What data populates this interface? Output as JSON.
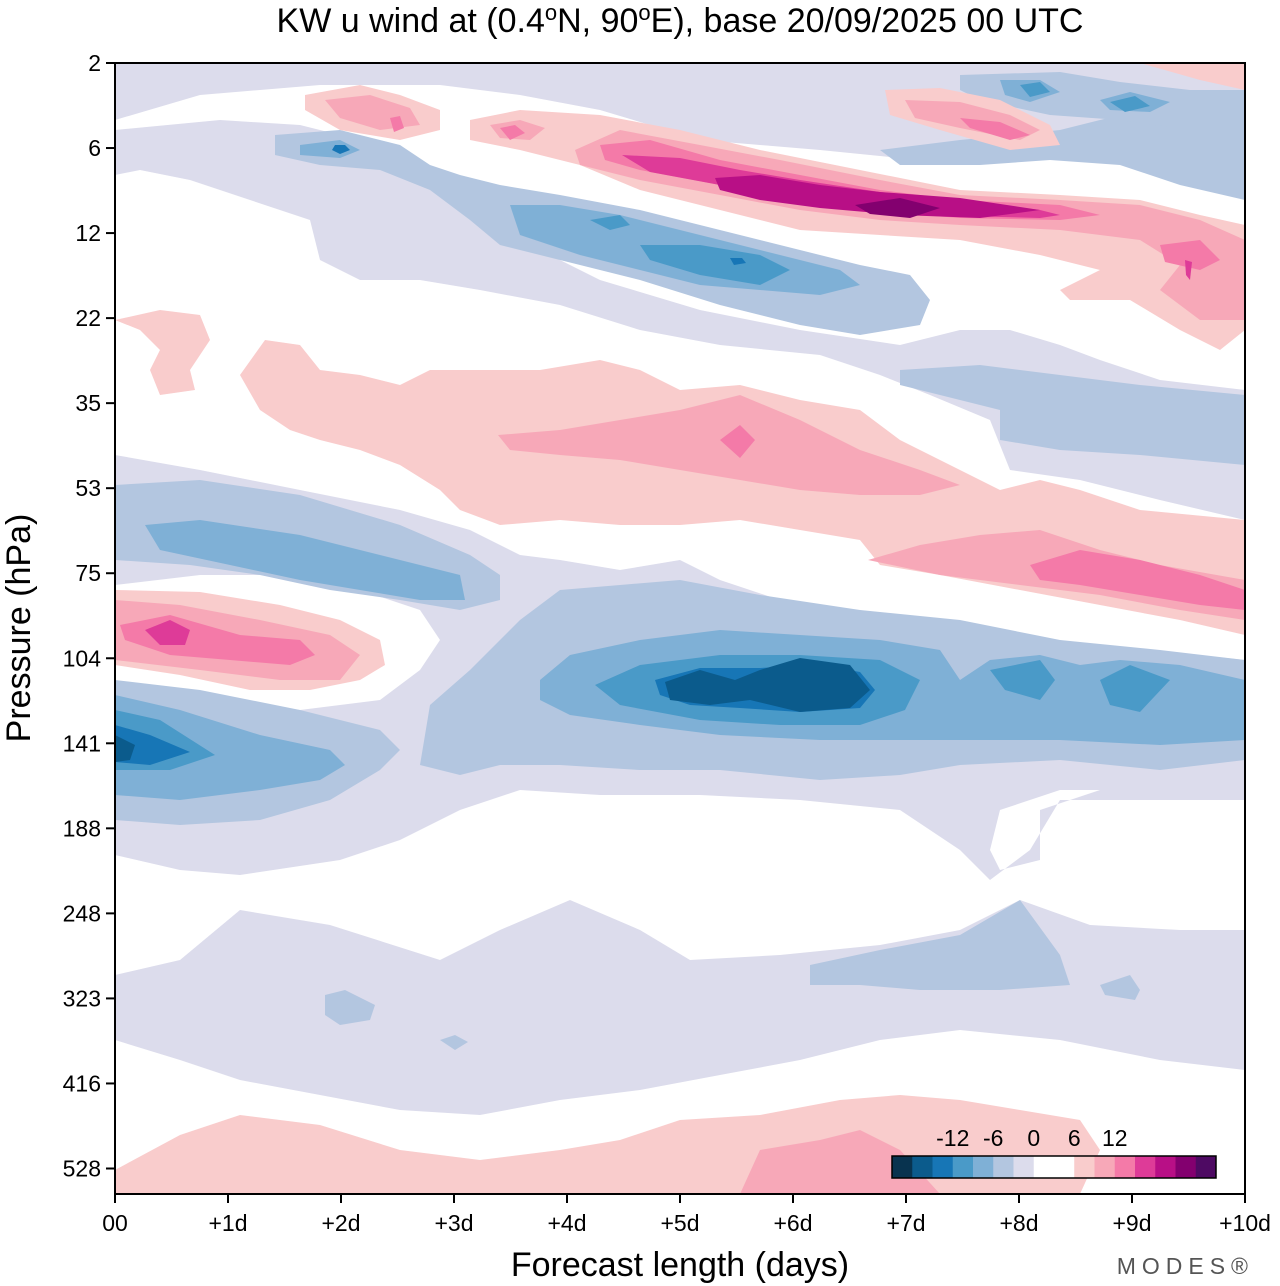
{
  "chart_data": {
    "type": "heatmap",
    "title": "KW u wind at (0.4°N, 90°E),  base 20/09/2025  00 UTC",
    "xlabel": "Forecast length (days)",
    "ylabel": "Pressure (hPa)",
    "x_ticks": [
      "00",
      "+1d",
      "+2d",
      "+3d",
      "+4d",
      "+5d",
      "+6d",
      "+7d",
      "+8d",
      "+9d",
      "+10d"
    ],
    "x_range_days": [
      0,
      10
    ],
    "y_ticks": [
      "2",
      "6",
      "12",
      "22",
      "35",
      "53",
      "75",
      "104",
      "141",
      "188",
      "248",
      "323",
      "416",
      "528"
    ],
    "colorbar": {
      "labels": [
        "-12",
        "-6",
        "0",
        "6",
        "12"
      ],
      "label_positions": [
        -12,
        -6,
        0,
        6,
        12
      ],
      "level_min": -21,
      "level_step": 3,
      "colors": [
        "#08334f",
        "#0b5b8c",
        "#1776b6",
        "#4a9ac8",
        "#7fb0d6",
        "#b3c6e0",
        "#dcdcec",
        "#ffffff",
        "#ffffff",
        "#f9cccc",
        "#f7a8b8",
        "#f47aa8",
        "#de3b98",
        "#b80f86",
        "#83006f",
        "#4e0a63"
      ]
    },
    "features": [
      {
        "name": "lower-strat easterly core ~110-130 hPa",
        "x_days": [
          4.0,
          8.3
        ],
        "value": -15
      },
      {
        "name": "westerly core ~95 hPa",
        "x_days": [
          0.0,
          2.3
        ],
        "value": 9
      },
      {
        "name": "easterly core ~141 hPa",
        "x_days": [
          0.0,
          2.0
        ],
        "value": -12
      },
      {
        "name": "strong westerly ~9 hPa",
        "x_days": [
          5.5,
          8.5
        ],
        "value": 18
      },
      {
        "name": "westerly band 60-90 hPa",
        "x_days": [
          7.0,
          10.0
        ],
        "value": 9
      }
    ]
  },
  "branding": {
    "logo": "MODES®"
  }
}
